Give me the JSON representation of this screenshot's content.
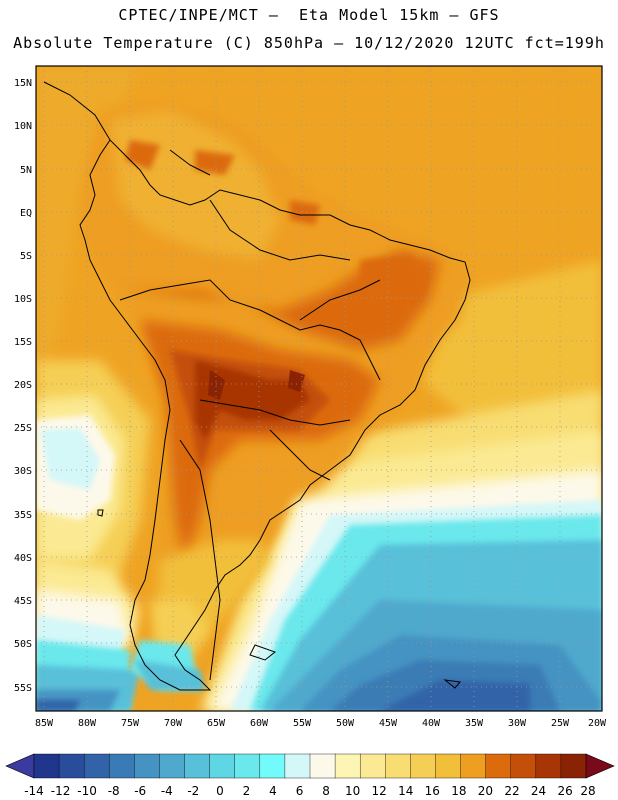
{
  "header": {
    "line1": "CPTEC/INPE/MCT –  Eta Model 15km – GFS",
    "line2": "Absolute Temperature (C) 850hPa – 10/12/2020 12UTC fct=199h"
  },
  "axes": {
    "lat_labels": [
      "15N",
      "10N",
      "5N",
      "EQ",
      "5S",
      "10S",
      "15S",
      "20S",
      "25S",
      "30S",
      "35S",
      "40S",
      "45S",
      "50S",
      "55S"
    ],
    "lon_labels": [
      "85W",
      "80W",
      "75W",
      "70W",
      "65W",
      "60W",
      "55W",
      "50W",
      "45W",
      "40W",
      "35W",
      "30W",
      "25W",
      "20W"
    ]
  },
  "colorbar": {
    "labels": [
      "-14",
      "-12",
      "-10",
      "-8",
      "-6",
      "-4",
      "-2",
      "0",
      "2",
      "4",
      "6",
      "8",
      "10",
      "12",
      "14",
      "16",
      "18",
      "20",
      "22",
      "24",
      "26",
      "28"
    ],
    "colors": [
      "#20358c",
      "#2a4d9b",
      "#3263a8",
      "#3b7bb5",
      "#4593c2",
      "#4fa9cd",
      "#59c0d9",
      "#5fd6e4",
      "#6ae8ec",
      "#73fafa",
      "#d4f7f8",
      "#fdf9ea",
      "#fdf5b4",
      "#fbea93",
      "#f8dd72",
      "#f5cf55",
      "#f2bf3a",
      "#ee9e20",
      "#dc6b0e",
      "#c44f0a",
      "#a83506",
      "#8a2204"
    ],
    "low_color": "#3a3aa0",
    "high_color": "#7a0a1a"
  },
  "map": {
    "region": "South America",
    "variable": "Absolute Temperature (C) 850hPa"
  }
}
